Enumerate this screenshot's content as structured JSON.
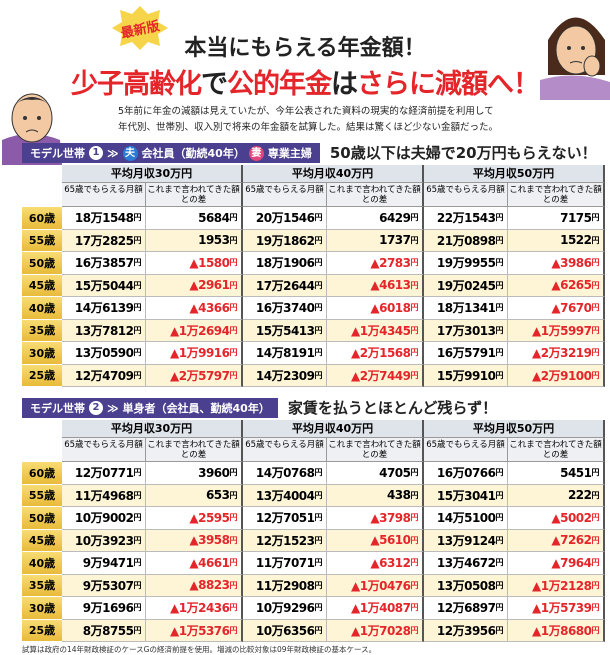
{
  "header": {
    "badge": "最新版",
    "title": "本当にもらえる年金額！",
    "subtitle": [
      {
        "text": "少子高齢化",
        "color": "#e4262b"
      },
      {
        "text": "で",
        "color": "#222222"
      },
      {
        "text": "公的年金",
        "color": "#e4262b"
      },
      {
        "text": "は",
        "color": "#222222"
      },
      {
        "text": "さらに減額へ！",
        "color": "#e4262b"
      }
    ]
  },
  "intro": [
    "5年前に年金の減額は見えていたが、今年公表された資料の現実的な経済前提を利用して",
    "年代別、世帯別、収入別で将来の年金額を試算した。結果は驚くほど少ない金額だった。"
  ],
  "sections": [
    {
      "label": "モデル世帯",
      "number": "1",
      "arrow": "≫",
      "tags": [
        {
          "badge": "夫",
          "text": "会社員（勤続40年）"
        },
        {
          "badge": "妻",
          "text": "専業主婦"
        }
      ],
      "headline": "50歳以下は夫婦で20万円もらえない！",
      "groups": [
        "平均月収30万円",
        "平均月収40万円",
        "平均月収50万円"
      ],
      "subheaders": [
        "65歳でもらえる月額",
        "これまで言われてきた額との差"
      ],
      "rows": [
        {
          "age": "60歳",
          "cells": [
            "18万1548円",
            "5684円",
            "20万1546円",
            "6429円",
            "22万1543円",
            "7175円"
          ]
        },
        {
          "age": "55歳",
          "cells": [
            "17万2825円",
            "1953円",
            "19万1862円",
            "1737円",
            "21万0898円",
            "1522円"
          ]
        },
        {
          "age": "50歳",
          "cells": [
            "16万3857円",
            "▲1580円",
            "18万1906円",
            "▲2783円",
            "19万9955円",
            "▲3986円"
          ]
        },
        {
          "age": "45歳",
          "cells": [
            "15万5044円",
            "▲2961円",
            "17万2644円",
            "▲4613円",
            "19万0245円",
            "▲6265円"
          ]
        },
        {
          "age": "40歳",
          "cells": [
            "14万6139円",
            "▲4366円",
            "16万3740円",
            "▲6018円",
            "18万1341円",
            "▲7670円"
          ]
        },
        {
          "age": "35歳",
          "cells": [
            "13万7812円",
            "▲1万2694円",
            "15万5413円",
            "▲1万4345円",
            "17万3013円",
            "▲1万5997円"
          ]
        },
        {
          "age": "30歳",
          "cells": [
            "13万0590円",
            "▲1万9916円",
            "14万8191円",
            "▲2万1568円",
            "16万5791円",
            "▲2万3219円"
          ]
        },
        {
          "age": "25歳",
          "cells": [
            "12万4709円",
            "▲2万5797円",
            "14万2309円",
            "▲2万7449円",
            "15万9910円",
            "▲2万9100円"
          ]
        }
      ]
    },
    {
      "label": "モデル世帯",
      "number": "2",
      "arrow": "≫",
      "tags": [
        {
          "text": "単身者（会社員、勤続40年）"
        }
      ],
      "headline": "家賃を払うとほとんど残らず！",
      "groups": [
        "平均月収30万円",
        "平均月収40万円",
        "平均月収50万円"
      ],
      "subheaders": [
        "65歳でもらえる月額",
        "これまで言われてきた額との差"
      ],
      "rows": [
        {
          "age": "60歳",
          "cells": [
            "12万0771円",
            "3960円",
            "14万0768円",
            "4705円",
            "16万0766円",
            "5451円"
          ]
        },
        {
          "age": "55歳",
          "cells": [
            "11万4968円",
            "653円",
            "13万4004円",
            "438円",
            "15万3041円",
            "222円"
          ]
        },
        {
          "age": "50歳",
          "cells": [
            "10万9002円",
            "▲2595円",
            "12万7051円",
            "▲3798円",
            "14万5100円",
            "▲5002円"
          ]
        },
        {
          "age": "45歳",
          "cells": [
            "10万3923円",
            "▲3958円",
            "12万1523円",
            "▲5610円",
            "13万9124円",
            "▲7262円"
          ]
        },
        {
          "age": "40歳",
          "cells": [
            "9万9471円",
            "▲4661円",
            "11万7071円",
            "▲6312円",
            "13万4672円",
            "▲7964円"
          ]
        },
        {
          "age": "35歳",
          "cells": [
            "9万5307円",
            "▲8823円",
            "11万2908円",
            "▲1万0476円",
            "13万0508円",
            "▲1万2128円"
          ]
        },
        {
          "age": "30歳",
          "cells": [
            "9万1696円",
            "▲1万2436円",
            "10万9296円",
            "▲1万4087円",
            "12万6897円",
            "▲1万5739円"
          ]
        },
        {
          "age": "25歳",
          "cells": [
            "8万8755円",
            "▲1万5376円",
            "10万6356円",
            "▲1万7028円",
            "12万3956円",
            "▲1万8680円"
          ]
        }
      ]
    }
  ],
  "footnote": "試算は政府の14年財政検証のケースGの経済前提を使用。増減の比較対象は09年財政検証の基本ケース。"
}
